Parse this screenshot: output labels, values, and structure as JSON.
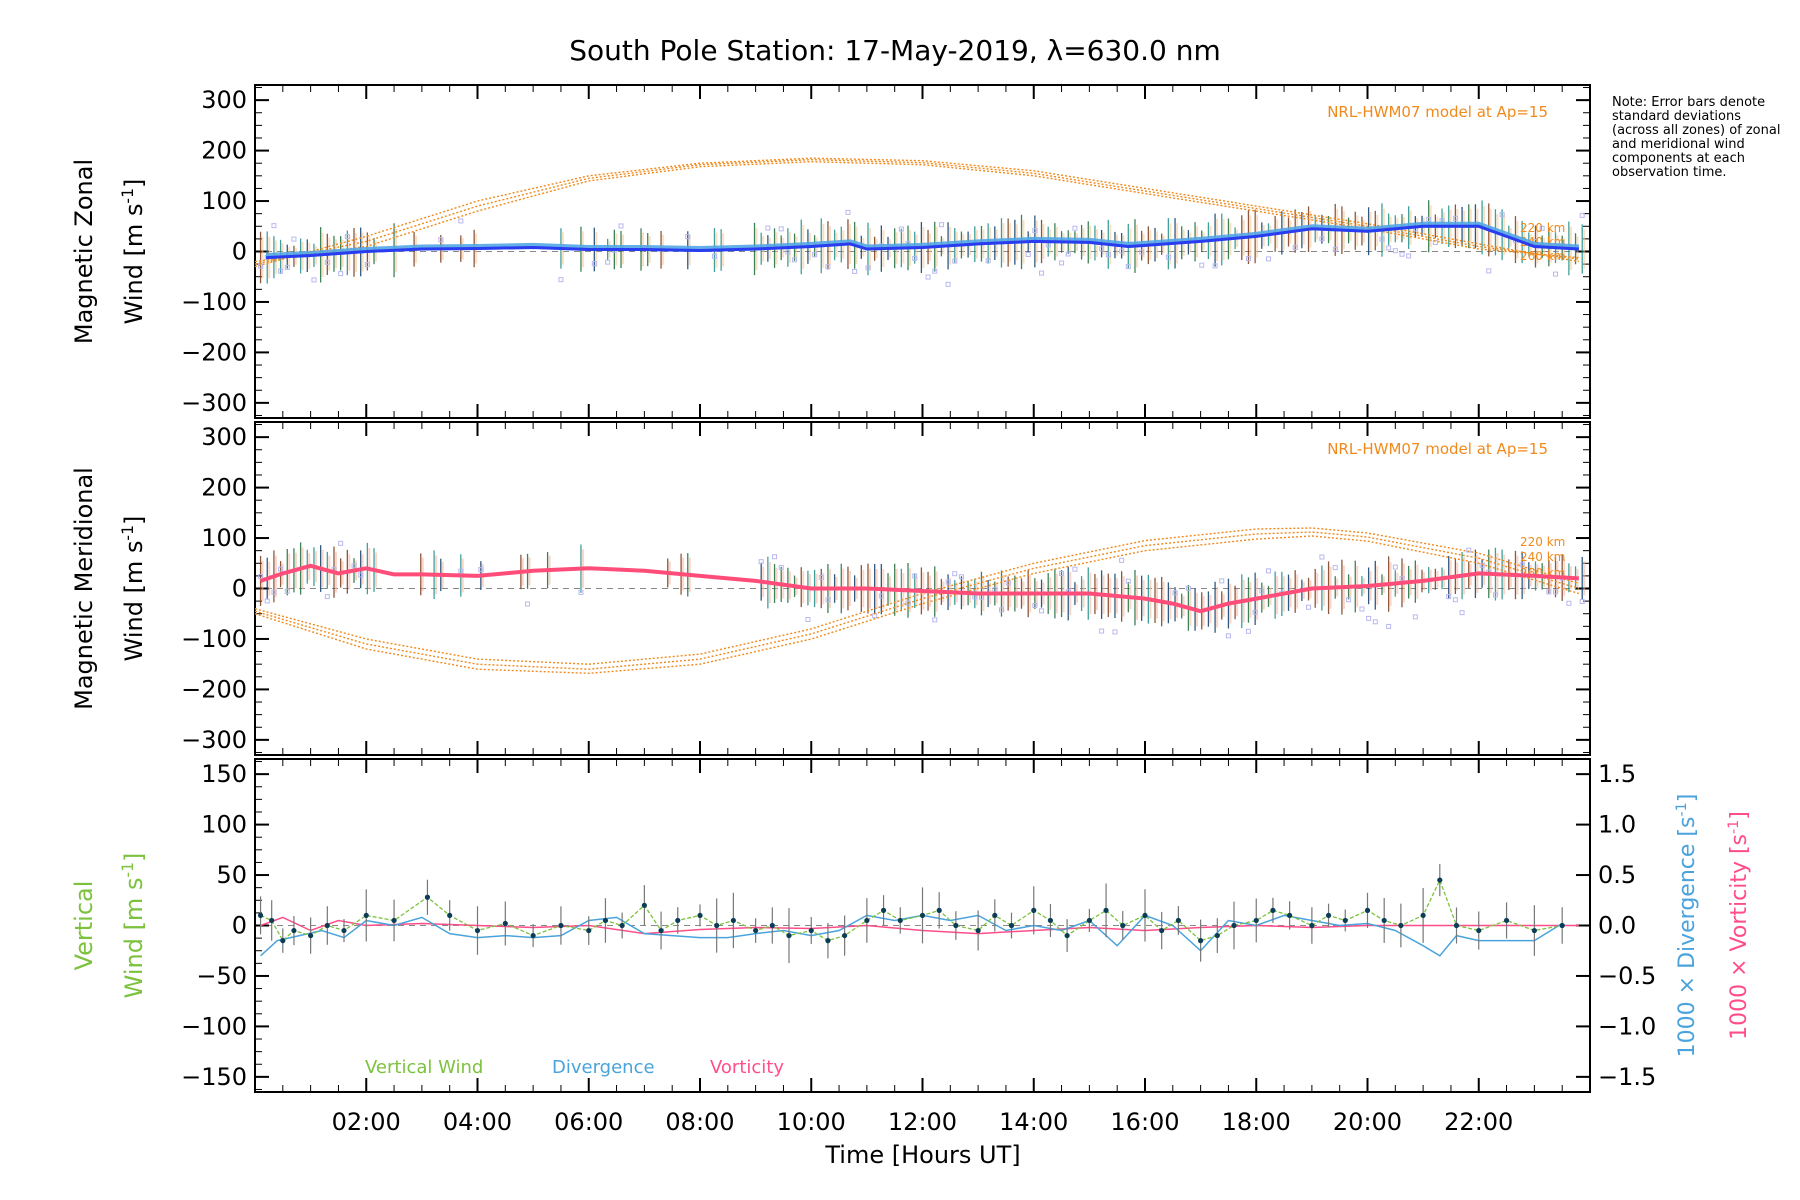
{
  "title": "South Pole Station: 17-May-2019, λ=630.0 nm",
  "note": "Note: Error bars denote standard deviations (across all zones) of zonal and meridional wind components at each observation time.",
  "colors": {
    "zonal": "#2a3cf0",
    "zonal_light": "#52a6e6",
    "meridional": "#ff4d7a",
    "vertical": "#7cc23e",
    "divergence": "#4aa3dc",
    "vorticity": "#ff4d8a",
    "model": "#f08a1c",
    "scatter": "#b8b8f0"
  },
  "chart_data": [
    {
      "type": "line",
      "name": "zonal",
      "ylabel_line1": "Magnetic Zonal",
      "ylabel_line2_prefix": "Wind ",
      "ylabel_units": "[m s",
      "ylabel_sup": "-1",
      "ylabel_close": "]",
      "ylim": [
        -330,
        330
      ],
      "yticks": [
        -300,
        -200,
        -100,
        0,
        100,
        200,
        300
      ],
      "model_label": "NRL-HWM07 model at Ap=15",
      "model_heights": [
        "220 km",
        "240 km",
        "260 km"
      ],
      "series": [
        {
          "name": "Zonal wind",
          "x": [
            0.2,
            1,
            2,
            3,
            4,
            5,
            6,
            7,
            8,
            9,
            10,
            10.7,
            11,
            12,
            13,
            14,
            15,
            15.7,
            16,
            17,
            18,
            19,
            20,
            21,
            22,
            22.5,
            23,
            23.8
          ],
          "y": [
            -12,
            -8,
            0,
            5,
            6,
            8,
            4,
            4,
            2,
            5,
            10,
            15,
            5,
            8,
            15,
            20,
            18,
            10,
            12,
            20,
            30,
            45,
            40,
            50,
            50,
            30,
            10,
            5
          ]
        }
      ],
      "model": [
        {
          "name": "220 km",
          "x": [
            0,
            2,
            4,
            6,
            8,
            10,
            12,
            14,
            16,
            18,
            20,
            22,
            23.8
          ],
          "y": [
            -30,
            30,
            100,
            150,
            175,
            185,
            180,
            160,
            125,
            90,
            55,
            15,
            -20
          ]
        },
        {
          "name": "240 km",
          "x": [
            0,
            2,
            4,
            6,
            8,
            10,
            12,
            14,
            16,
            18,
            20,
            22,
            23.8
          ],
          "y": [
            -25,
            20,
            90,
            145,
            172,
            182,
            176,
            155,
            120,
            85,
            50,
            10,
            -15
          ]
        },
        {
          "name": "260 km",
          "x": [
            0,
            2,
            4,
            6,
            8,
            10,
            12,
            14,
            16,
            18,
            20,
            22,
            23.8
          ],
          "y": [
            -20,
            10,
            80,
            140,
            168,
            178,
            172,
            150,
            115,
            80,
            45,
            5,
            -12
          ]
        }
      ]
    },
    {
      "type": "line",
      "name": "meridional",
      "ylabel_line1": "Magnetic Meridional",
      "ylabel_line2_prefix": "Wind ",
      "ylabel_units": "[m s",
      "ylabel_sup": "-1",
      "ylabel_close": "]",
      "ylim": [
        -330,
        330
      ],
      "yticks": [
        -300,
        -200,
        -100,
        0,
        100,
        200,
        300
      ],
      "model_label": "NRL-HWM07 model at Ap=15",
      "model_heights": [
        "220 km",
        "240 km",
        "260 km"
      ],
      "series": [
        {
          "name": "Meridional wind",
          "x": [
            0.1,
            0.5,
            1,
            1.5,
            2,
            2.5,
            3,
            4,
            5,
            6,
            7,
            8,
            9,
            10,
            11,
            12,
            13,
            14,
            15,
            16,
            16.5,
            17,
            17.5,
            18,
            19,
            20,
            21,
            22,
            23,
            23.8
          ],
          "y": [
            15,
            30,
            45,
            30,
            40,
            28,
            28,
            25,
            35,
            40,
            35,
            25,
            15,
            0,
            0,
            -5,
            -10,
            -10,
            -10,
            -20,
            -30,
            -45,
            -30,
            -20,
            0,
            5,
            15,
            30,
            25,
            20
          ]
        }
      ],
      "model": [
        {
          "name": "220 km",
          "x": [
            0,
            2,
            4,
            6,
            8,
            10,
            12,
            14,
            16,
            18,
            19,
            20,
            22,
            23.8
          ],
          "y": [
            -40,
            -100,
            -140,
            -150,
            -130,
            -80,
            -10,
            50,
            95,
            118,
            120,
            110,
            70,
            10
          ]
        },
        {
          "name": "240 km",
          "x": [
            0,
            2,
            4,
            6,
            8,
            10,
            12,
            14,
            16,
            18,
            19,
            20,
            22,
            23.8
          ],
          "y": [
            -45,
            -110,
            -150,
            -160,
            -140,
            -90,
            -20,
            40,
            85,
            108,
            112,
            102,
            60,
            0
          ]
        },
        {
          "name": "260 km",
          "x": [
            0,
            2,
            4,
            6,
            8,
            10,
            12,
            14,
            16,
            18,
            19,
            20,
            22,
            23.8
          ],
          "y": [
            -50,
            -120,
            -160,
            -168,
            -150,
            -100,
            -30,
            30,
            75,
            98,
            104,
            94,
            50,
            -10
          ]
        }
      ]
    },
    {
      "type": "line",
      "name": "vertical",
      "ylabel_line1": "Vertical",
      "ylabel_line2_prefix": "Wind ",
      "ylabel_units": "[m s",
      "ylabel_sup": "-1",
      "ylabel_close": "]",
      "ylim": [
        -165,
        165
      ],
      "yticks": [
        -150,
        -100,
        -50,
        0,
        50,
        100,
        150
      ],
      "y2lim": [
        -1.65,
        1.65
      ],
      "y2ticks": [
        -1.5,
        -1.0,
        -0.5,
        0.0,
        0.5,
        1.0,
        1.5
      ],
      "y2ticklabels": [
        "−1.5",
        "−1.0",
        "−0.5",
        "0.0",
        "0.5",
        "1.0",
        "1.5"
      ],
      "y2label_div": "1000 × Divergence ",
      "y2label_vor": "1000 × Vorticity ",
      "y2label_units": "[s",
      "y2label_sup": "-1",
      "y2label_close": "]",
      "legend": [
        "Vertical Wind",
        "Divergence",
        "Vorticity"
      ],
      "series": [
        {
          "name": "Vertical Wind",
          "x": [
            0.1,
            0.3,
            0.5,
            0.7,
            1,
            1.3,
            1.6,
            2,
            2.5,
            3.1,
            3.5,
            4,
            4.5,
            5,
            5.5,
            6,
            6.3,
            6.6,
            7,
            7.3,
            7.6,
            8,
            8.3,
            8.6,
            9,
            9.3,
            9.6,
            10,
            10.3,
            10.6,
            11,
            11.3,
            11.6,
            12,
            12.3,
            12.6,
            13,
            13.3,
            13.6,
            14,
            14.3,
            14.6,
            15,
            15.3,
            15.6,
            16,
            16.3,
            16.6,
            17,
            17.3,
            17.6,
            18,
            18.3,
            18.6,
            19,
            19.3,
            19.6,
            20,
            20.3,
            20.6,
            21,
            21.3,
            21.6,
            22,
            22.5,
            23,
            23.5
          ],
          "y": [
            10,
            5,
            -15,
            -5,
            -10,
            0,
            -5,
            10,
            5,
            28,
            10,
            -5,
            2,
            -10,
            0,
            -5,
            5,
            0,
            20,
            -5,
            5,
            10,
            0,
            5,
            -5,
            0,
            -10,
            -5,
            -15,
            -10,
            5,
            15,
            5,
            10,
            15,
            0,
            -5,
            10,
            0,
            15,
            5,
            -10,
            5,
            15,
            0,
            10,
            -5,
            5,
            -15,
            -10,
            0,
            5,
            15,
            10,
            0,
            10,
            5,
            15,
            5,
            0,
            10,
            45,
            0,
            -5,
            5,
            -5,
            0
          ]
        },
        {
          "name": "Divergence",
          "axis": "y2",
          "x": [
            0.1,
            0.4,
            0.8,
            1.2,
            1.6,
            2,
            2.5,
            3,
            3.5,
            4,
            4.5,
            5,
            5.5,
            6,
            6.5,
            7,
            7.5,
            8,
            8.5,
            9,
            9.5,
            10,
            10.5,
            11,
            11.5,
            12,
            12.5,
            13,
            13.5,
            14,
            14.5,
            15,
            15.5,
            16,
            16.5,
            17,
            17.5,
            18,
            18.5,
            19,
            19.5,
            20,
            20.5,
            21,
            21.3,
            21.6,
            22,
            22.5,
            23,
            23.5
          ],
          "y": [
            -0.3,
            -0.15,
            -0.1,
            -0.05,
            -0.12,
            0.05,
            0.0,
            0.08,
            -0.08,
            -0.12,
            -0.1,
            -0.12,
            -0.1,
            0.05,
            0.08,
            -0.08,
            -0.1,
            -0.12,
            -0.12,
            -0.08,
            -0.05,
            -0.1,
            -0.05,
            0.1,
            0.05,
            0.1,
            0.05,
            0.1,
            -0.05,
            0.0,
            -0.05,
            0.05,
            -0.2,
            0.1,
            0.0,
            -0.25,
            0.05,
            0.0,
            0.1,
            0.05,
            0.0,
            0.02,
            -0.05,
            -0.2,
            -0.3,
            -0.1,
            -0.15,
            -0.15,
            -0.15,
            0.02
          ]
        },
        {
          "name": "Vorticity",
          "axis": "y2",
          "x": [
            0.1,
            0.5,
            1,
            1.5,
            2,
            3,
            4,
            5,
            6,
            7,
            8,
            9,
            10,
            11,
            12,
            13,
            14,
            15,
            16,
            17,
            18,
            19,
            20,
            21,
            22,
            23,
            23.8
          ],
          "y": [
            0.0,
            0.08,
            -0.05,
            0.05,
            0.0,
            0.02,
            0.0,
            -0.02,
            0.0,
            -0.08,
            -0.04,
            -0.02,
            -0.03,
            0.0,
            -0.05,
            -0.08,
            -0.05,
            -0.02,
            -0.05,
            -0.02,
            0.0,
            -0.02,
            0.0,
            0.0,
            0.0,
            0.0,
            0.0
          ]
        }
      ]
    }
  ],
  "x_axis": {
    "label": "Time [Hours UT]",
    "xlim": [
      0,
      24
    ],
    "ticks": [
      2,
      4,
      6,
      8,
      10,
      12,
      14,
      16,
      18,
      20,
      22
    ],
    "ticklabels": [
      "02:00",
      "04:00",
      "06:00",
      "08:00",
      "10:00",
      "12:00",
      "14:00",
      "16:00",
      "18:00",
      "20:00",
      "22:00"
    ]
  }
}
